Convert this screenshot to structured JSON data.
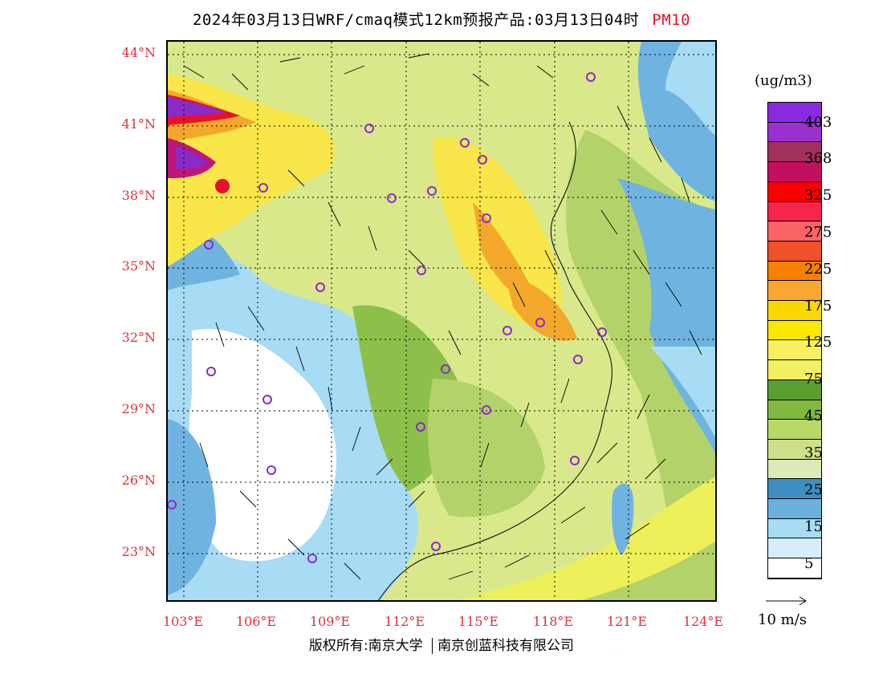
{
  "header": {
    "title": "2024年03月13日WRF/cmaq模式12km预报产品:03月13日04时",
    "pollutant": "PM10"
  },
  "map": {
    "lat_labels": [
      "44°N",
      "41°N",
      "38°N",
      "35°N",
      "32°N",
      "29°N",
      "26°N",
      "23°N"
    ],
    "lon_labels": [
      "103°E",
      "106°E",
      "109°E",
      "112°E",
      "115°E",
      "118°E",
      "121°E",
      "124°E"
    ],
    "colors": {
      "white": "#ffffff",
      "pale_blue": "#d8effa",
      "light_blue": "#a8dcf5",
      "mid_blue": "#6fb4e0",
      "dark_blue": "#3f8cc6",
      "pale_green": "#dce9b8",
      "light_green": "#b3d36a",
      "green": "#8cc04a",
      "dark_green": "#5aa22e",
      "yellow_green": "#eef05a",
      "yellow": "#f8e64a",
      "orange": "#f4a82b",
      "red": "#e8102a",
      "magenta": "#c0157a",
      "purple": "#8a2bc8"
    }
  },
  "legend": {
    "unit": "(ug/m3)",
    "labels": [
      "403",
      "368",
      "325",
      "275",
      "225",
      "175",
      "125",
      "75",
      "45",
      "35",
      "25",
      "15",
      "5"
    ],
    "swatches": [
      "#8a2be2",
      "#9b30d0",
      "#a0305c",
      "#c21060",
      "#f80000",
      "#f8244c",
      "#fa6464",
      "#f0502a",
      "#f88000",
      "#f8a830",
      "#f8d800",
      "#fae800",
      "#f8f060",
      "#f0f060",
      "#5a9e30",
      "#80b840",
      "#b8d868",
      "#cce08a",
      "#dce9b8",
      "#3e8ec4",
      "#6ab0dc",
      "#a6dcf4",
      "#d6eefa",
      "#ffffff"
    ],
    "wind_ref": "10 m/s"
  },
  "footer": {
    "copyright": "版权所有:南京大学",
    "company": "南京创蓝科技有限公司"
  }
}
